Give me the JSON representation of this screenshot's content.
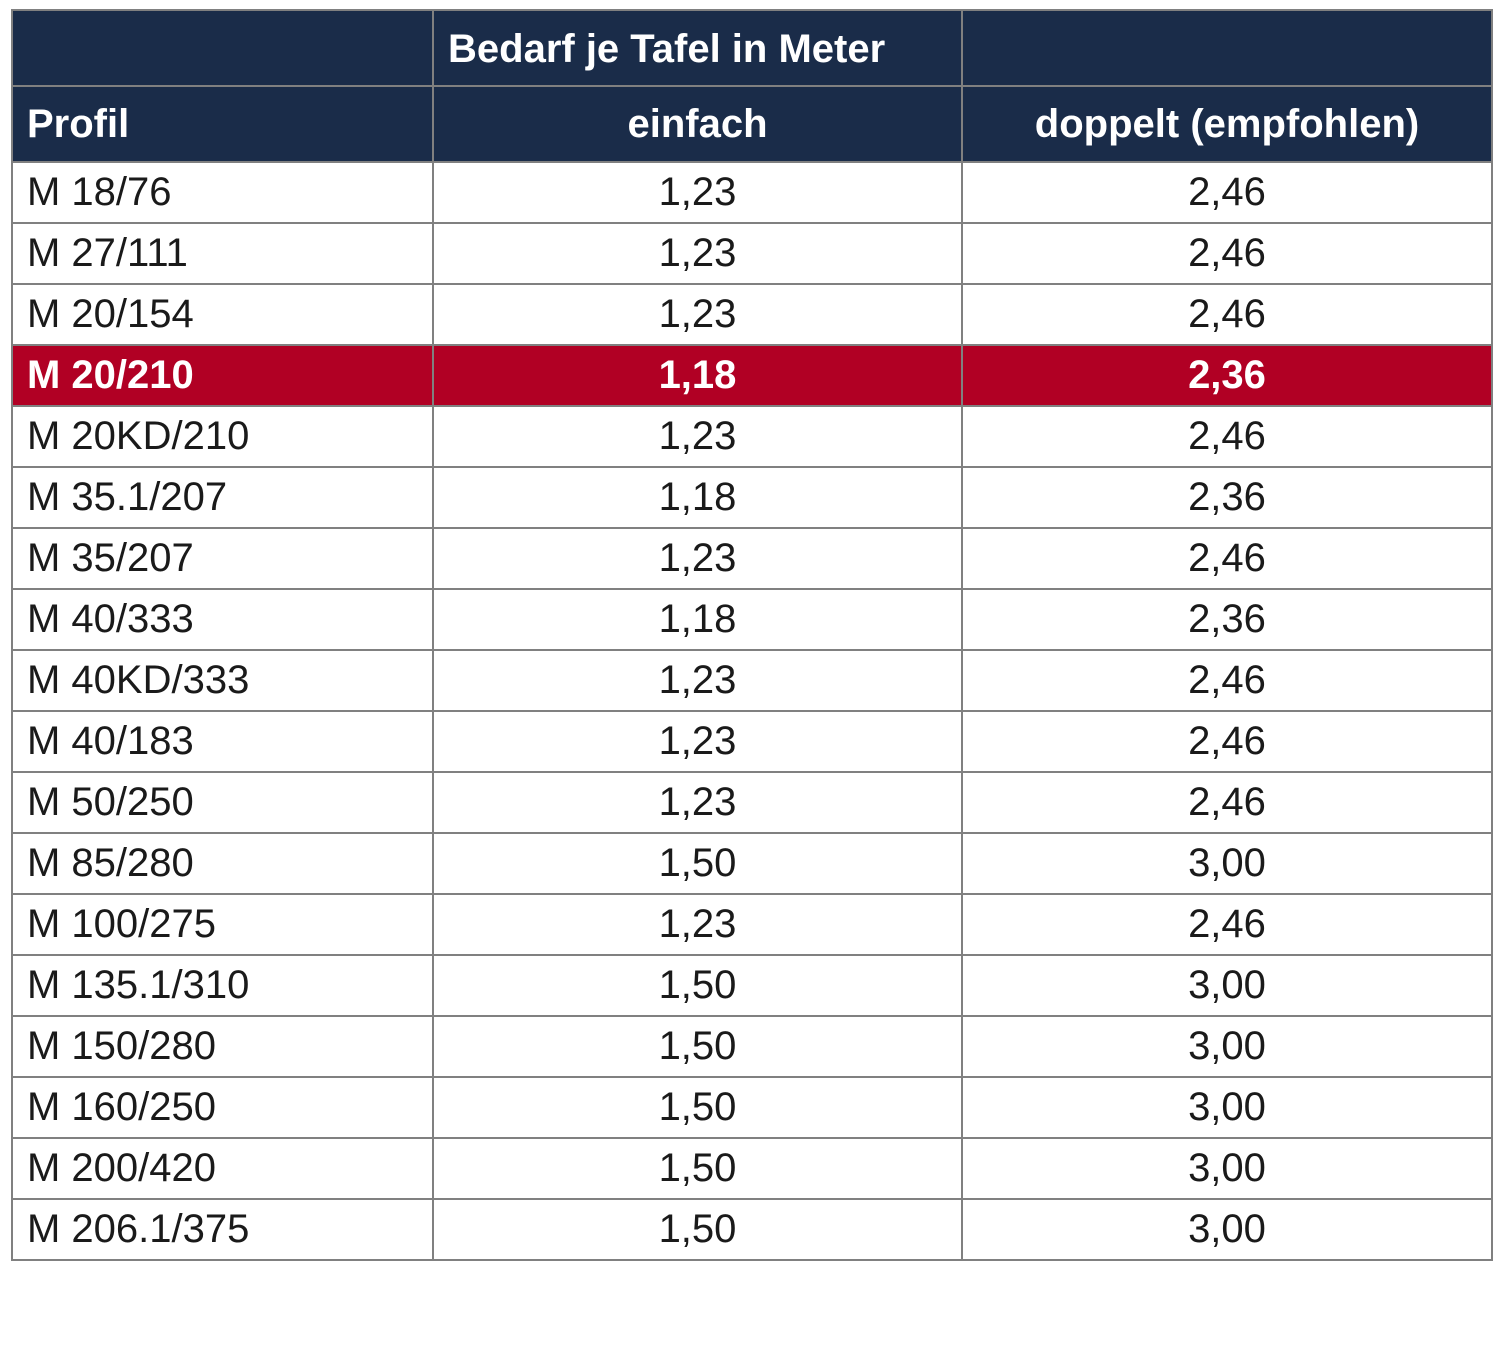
{
  "header": {
    "group_title": "Bedarf je Tafel in Meter",
    "col_profil": "Profil",
    "col_einfach": "einfach",
    "col_doppelt": "doppelt (empfohlen)"
  },
  "highlight_color": "#b10024",
  "header_color": "#1a2c49",
  "rows": [
    {
      "profil": "M 18/76",
      "einfach": "1,23",
      "doppelt": "2,46"
    },
    {
      "profil": "M 27/111",
      "einfach": "1,23",
      "doppelt": "2,46"
    },
    {
      "profil": "M 20/154",
      "einfach": "1,23",
      "doppelt": "2,46"
    },
    {
      "profil": "M 20/210",
      "einfach": "1,18",
      "doppelt": "2,36",
      "highlighted": true
    },
    {
      "profil": "M 20KD/210",
      "einfach": "1,23",
      "doppelt": "2,46"
    },
    {
      "profil": "M 35.1/207",
      "einfach": "1,18",
      "doppelt": "2,36"
    },
    {
      "profil": "M 35/207",
      "einfach": "1,23",
      "doppelt": "2,46"
    },
    {
      "profil": "M 40/333",
      "einfach": "1,18",
      "doppelt": "2,36"
    },
    {
      "profil": "M 40KD/333",
      "einfach": "1,23",
      "doppelt": "2,46"
    },
    {
      "profil": "M 40/183",
      "einfach": "1,23",
      "doppelt": "2,46"
    },
    {
      "profil": "M 50/250",
      "einfach": "1,23",
      "doppelt": "2,46"
    },
    {
      "profil": "M 85/280",
      "einfach": "1,50",
      "doppelt": "3,00"
    },
    {
      "profil": "M 100/275",
      "einfach": "1,23",
      "doppelt": "2,46"
    },
    {
      "profil": "M 135.1/310",
      "einfach": "1,50",
      "doppelt": "3,00"
    },
    {
      "profil": "M 150/280",
      "einfach": "1,50",
      "doppelt": "3,00"
    },
    {
      "profil": "M 160/250",
      "einfach": "1,50",
      "doppelt": "3,00"
    },
    {
      "profil": "M 200/420",
      "einfach": "1,50",
      "doppelt": "3,00"
    },
    {
      "profil": "M 206.1/375",
      "einfach": "1,50",
      "doppelt": "3,00"
    }
  ]
}
